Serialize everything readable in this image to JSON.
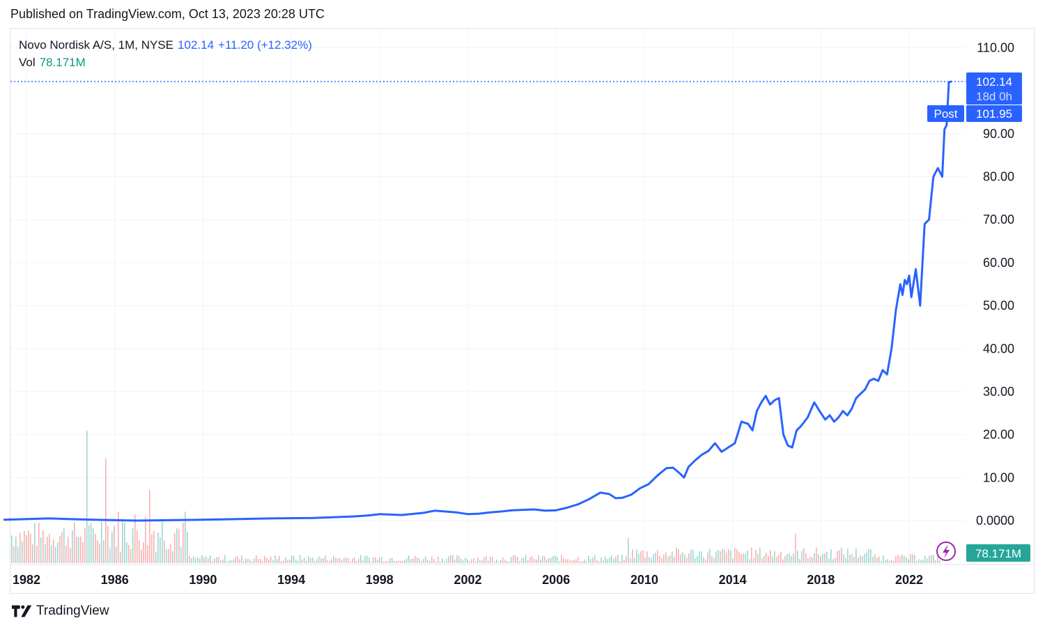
{
  "header": {
    "published": "Published on TradingView.com, Oct 13, 2023 20:28 UTC"
  },
  "legend": {
    "symbol": "Novo Nordisk A/S, 1M, NYSE",
    "last": "102.14",
    "change": "+11.20 (+12.32%)",
    "vol_label": "Vol",
    "vol_value": "78.171M"
  },
  "price_labels": {
    "last": "102.14",
    "countdown": "18d 0h",
    "post_tag": "Post",
    "post": "101.95",
    "volume": "78.171M"
  },
  "footer": {
    "brand": "TradingView"
  },
  "colors": {
    "line": "#2962ff",
    "up": "#26a69a",
    "down": "#ef5350",
    "volume_badge": "#26a69a",
    "grid": "#f0f3fa"
  },
  "chart_data": {
    "type": "line",
    "xlabel": "",
    "ylabel": "",
    "ylim": [
      -2.5,
      115
    ],
    "xlim": [
      1981.0,
      2024.8
    ],
    "y_ticks": [
      "110.00",
      "90.00",
      "80.00",
      "70.00",
      "60.00",
      "50.00",
      "40.00",
      "30.00",
      "20.00",
      "10.00",
      "0.0000"
    ],
    "y_tick_values": [
      110,
      90,
      80,
      70,
      60,
      50,
      40,
      30,
      20,
      10,
      0
    ],
    "x_ticks": [
      "1982",
      "1986",
      "1990",
      "1994",
      "1998",
      "2002",
      "2006",
      "2010",
      "2014",
      "2018",
      "2022"
    ],
    "x_tick_values": [
      1982,
      1986,
      1990,
      1994,
      1998,
      2002,
      2006,
      2010,
      2014,
      2018,
      2022
    ],
    "grid": true,
    "last_price": 102.14,
    "post_price": 101.95,
    "series": [
      {
        "x": [
          1981.0,
          1983.0,
          1985.0,
          1987.0,
          1990.0,
          1993.0,
          1995.0,
          1997.0,
          1997.5,
          1998.0,
          1999.0,
          2000.0,
          2000.5,
          2001.0,
          2001.5,
          2002.0,
          2002.5,
          2003.0,
          2003.5,
          2004.0,
          2004.5,
          2005.0,
          2005.5,
          2006.0,
          2006.5,
          2007.0,
          2007.5,
          2008.0,
          2008.4,
          2008.7,
          2009.0,
          2009.4,
          2009.8,
          2010.2,
          2010.6,
          2011.0,
          2011.3,
          2011.6,
          2011.8,
          2012.0,
          2012.3,
          2012.6,
          2012.9,
          2013.2,
          2013.5,
          2013.8,
          2014.1,
          2014.4,
          2014.7,
          2014.9,
          2015.1,
          2015.3,
          2015.5,
          2015.7,
          2015.9,
          2016.1,
          2016.3,
          2016.5,
          2016.7,
          2016.9,
          2017.1,
          2017.4,
          2017.7,
          2018.0,
          2018.2,
          2018.4,
          2018.6,
          2018.8,
          2019.0,
          2019.2,
          2019.4,
          2019.6,
          2019.8,
          2020.0,
          2020.2,
          2020.4,
          2020.6,
          2020.8,
          2021.0,
          2021.2,
          2021.4,
          2021.6,
          2021.7,
          2021.8,
          2021.9,
          2022.0,
          2022.1,
          2022.3,
          2022.5,
          2022.7,
          2022.9,
          2023.1,
          2023.3,
          2023.5,
          2023.6,
          2023.7,
          2023.8,
          2023.9
        ],
        "values": [
          0.2,
          0.5,
          0.2,
          0.0,
          0.2,
          0.5,
          0.6,
          1.0,
          1.2,
          1.5,
          1.3,
          1.8,
          2.3,
          2.1,
          1.9,
          1.5,
          1.6,
          1.9,
          2.1,
          2.4,
          2.5,
          2.6,
          2.3,
          2.4,
          3.0,
          3.8,
          5.0,
          6.5,
          6.2,
          5.2,
          5.3,
          6.0,
          7.5,
          8.5,
          10.5,
          12.2,
          12.3,
          11.0,
          10.0,
          12.5,
          14.0,
          15.3,
          16.2,
          18.0,
          16.0,
          17.0,
          18.0,
          23.0,
          22.5,
          21.0,
          25.5,
          27.5,
          29.0,
          27.0,
          28.0,
          28.5,
          20.0,
          17.5,
          17.0,
          21.0,
          22.0,
          24.0,
          27.5,
          25.0,
          23.5,
          24.5,
          23.0,
          24.0,
          25.5,
          24.5,
          26.0,
          28.5,
          29.5,
          30.5,
          32.5,
          33.0,
          32.5,
          35.0,
          34.0,
          40.0,
          49.0,
          55.0,
          52.5,
          56.0,
          55.0,
          57.0,
          52.0,
          58.5,
          50.0,
          69.0,
          70.0,
          80.0,
          82.0,
          80.0,
          91.0,
          92.0,
          101.95,
          102.14
        ]
      }
    ],
    "volume_unit": "M"
  }
}
